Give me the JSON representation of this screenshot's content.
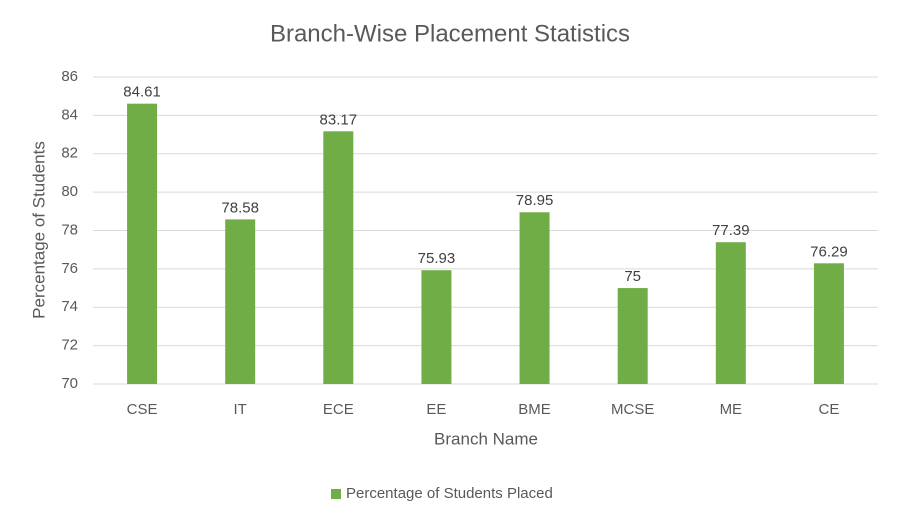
{
  "chart_data": {
    "type": "bar",
    "title": "Branch-Wise Placement Statistics",
    "x_label": "Branch Name",
    "y_label": "Percentage of Students",
    "categories": [
      "CSE",
      "IT",
      "ECE",
      "EE",
      "BME",
      "MCSE",
      "ME",
      "CE"
    ],
    "series": [
      {
        "name": "Percentage of Students Placed",
        "color": "#70ad47",
        "values": [
          84.61,
          78.58,
          83.17,
          75.93,
          78.95,
          75,
          77.39,
          76.29
        ]
      }
    ],
    "ylim": [
      70,
      86
    ],
    "yticks": [
      70,
      72,
      74,
      76,
      78,
      80,
      82,
      84,
      86
    ],
    "grid": true,
    "data_labels": true,
    "legend": "bottom"
  }
}
